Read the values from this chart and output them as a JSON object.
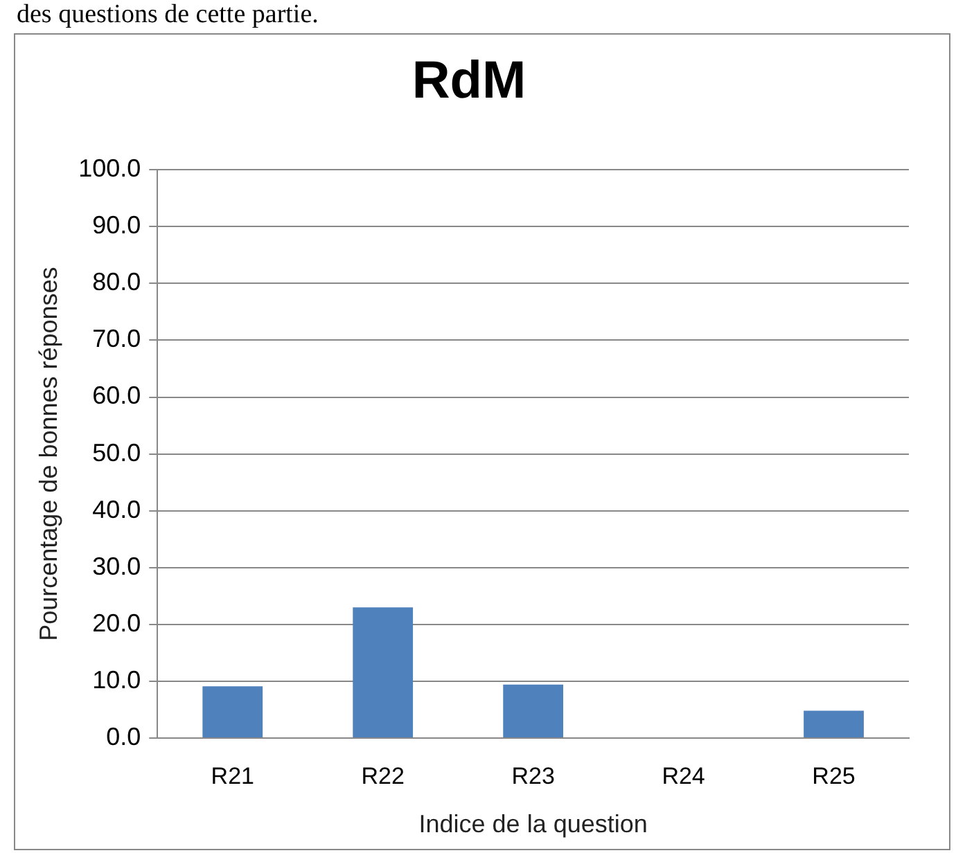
{
  "chart_data": {
    "type": "bar",
    "title": "RdM",
    "xlabel": "Indice de la question",
    "ylabel": "Pourcentage de bonnes réponses",
    "annotations": [
      "des questions de cette partie."
    ],
    "categories": [
      "R21",
      "R22",
      "R23",
      "R24",
      "R25"
    ],
    "values": [
      9.1,
      23.0,
      9.4,
      0,
      4.8
    ],
    "color": "#4f81bd",
    "ylim": [
      0,
      100
    ],
    "yticks": [
      {
        "value": 0,
        "label": "0.0"
      },
      {
        "value": 10,
        "label": "10.0"
      },
      {
        "value": 20,
        "label": "20.0"
      },
      {
        "value": 30,
        "label": "30.0"
      },
      {
        "value": 40,
        "label": "40.0"
      },
      {
        "value": 50,
        "label": "50.0"
      },
      {
        "value": 60,
        "label": "60.0"
      },
      {
        "value": 70,
        "label": "70.0"
      },
      {
        "value": 80,
        "label": "80.0"
      },
      {
        "value": 90,
        "label": "90.0"
      },
      {
        "value": 100,
        "label": "100.0"
      }
    ],
    "grid": "y",
    "legend": false
  }
}
